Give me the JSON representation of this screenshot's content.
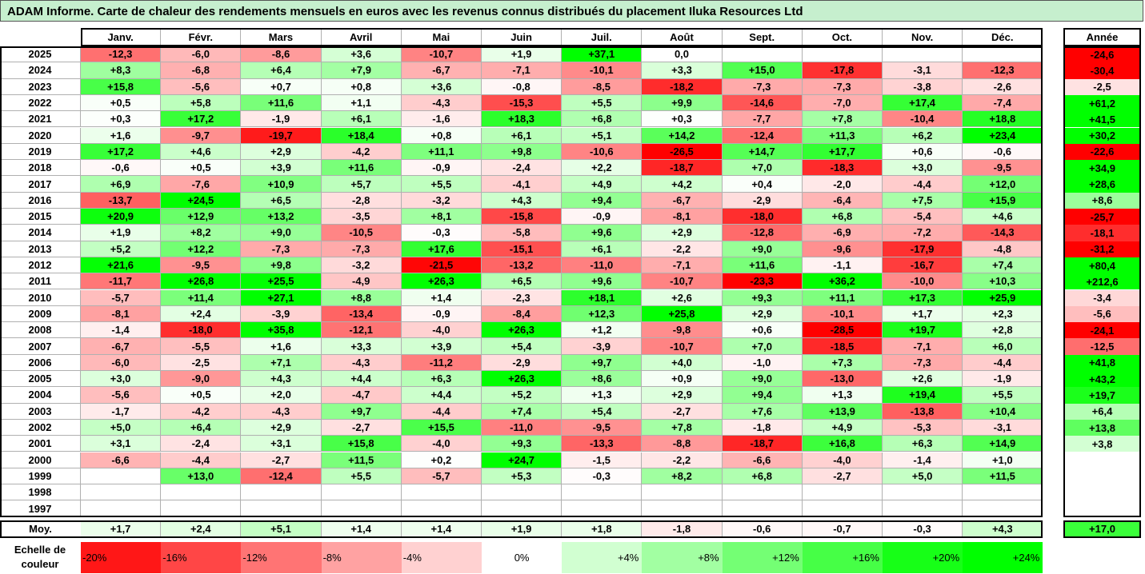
{
  "title": "ADAM Informe. Carte de chaleur des rendements mensuels en euros avec les revenus connus distribués du placement Iluka Resources Ltd",
  "chart_data": {
    "type": "heatmap",
    "months": [
      "Janv.",
      "Févr.",
      "Mars",
      "Avril",
      "Mai",
      "Juin",
      "Juil.",
      "Août",
      "Sept.",
      "Oct.",
      "Nov.",
      "Déc."
    ],
    "annual_header": "Année",
    "years": [
      "2025",
      "2024",
      "2023",
      "2022",
      "2021",
      "2020",
      "2019",
      "2018",
      "2017",
      "2016",
      "2015",
      "2014",
      "2013",
      "2012",
      "2011",
      "2010",
      "2009",
      "2008",
      "2007",
      "2006",
      "2005",
      "2004",
      "2003",
      "2002",
      "2001",
      "2000",
      "1999",
      "1998",
      "1997"
    ],
    "values": [
      [
        -12.3,
        -6.0,
        -8.6,
        3.6,
        -10.7,
        1.9,
        37.1,
        0.0,
        null,
        null,
        null,
        null
      ],
      [
        8.3,
        -6.8,
        6.4,
        7.9,
        -6.7,
        -7.1,
        -10.1,
        3.3,
        15.0,
        -17.8,
        -3.1,
        -12.3
      ],
      [
        15.8,
        -5.6,
        0.7,
        0.8,
        3.6,
        -0.8,
        -8.5,
        -18.2,
        -7.3,
        -7.3,
        -3.8,
        -2.6
      ],
      [
        0.5,
        5.8,
        11.6,
        1.1,
        -4.3,
        -15.3,
        5.5,
        9.9,
        -14.6,
        -7.0,
        17.4,
        -7.4
      ],
      [
        0.3,
        17.2,
        -1.9,
        6.1,
        -1.6,
        18.3,
        6.8,
        0.3,
        -7.7,
        7.8,
        -10.4,
        18.8
      ],
      [
        1.6,
        -9.7,
        -19.7,
        18.4,
        0.8,
        6.1,
        5.1,
        14.2,
        -12.4,
        11.3,
        6.2,
        23.4
      ],
      [
        17.2,
        4.6,
        2.9,
        -4.2,
        11.1,
        9.8,
        -10.6,
        -26.5,
        14.7,
        17.7,
        0.6,
        -0.6
      ],
      [
        -0.6,
        0.5,
        3.9,
        11.6,
        -0.9,
        -2.4,
        2.2,
        -18.7,
        7.0,
        -18.3,
        3.0,
        -9.5
      ],
      [
        6.9,
        -7.6,
        10.9,
        5.7,
        5.5,
        -4.1,
        4.9,
        4.2,
        0.4,
        -2.0,
        -4.4,
        12.0
      ],
      [
        -13.7,
        24.5,
        6.5,
        -2.8,
        -3.2,
        4.3,
        9.4,
        -6.7,
        -2.9,
        -6.4,
        7.5,
        15.9
      ],
      [
        20.9,
        12.9,
        13.2,
        -3.5,
        8.1,
        -15.8,
        -0.9,
        -8.1,
        -18.0,
        6.8,
        -5.4,
        4.6
      ],
      [
        1.9,
        8.2,
        9.0,
        -10.5,
        -0.3,
        -5.8,
        9.6,
        2.9,
        -12.8,
        -6.9,
        -7.2,
        -14.3
      ],
      [
        5.2,
        12.2,
        -7.3,
        -7.3,
        17.6,
        -15.1,
        6.1,
        -2.2,
        9.0,
        -9.6,
        -17.9,
        -4.8
      ],
      [
        21.6,
        -9.5,
        9.8,
        -3.2,
        -21.5,
        -13.2,
        -11.0,
        -7.1,
        11.6,
        -1.1,
        -16.7,
        7.4
      ],
      [
        -11.7,
        26.8,
        25.5,
        -4.9,
        26.3,
        6.5,
        9.6,
        -10.7,
        -23.3,
        36.2,
        -10.0,
        10.3
      ],
      [
        -5.7,
        11.4,
        27.1,
        8.8,
        1.4,
        -2.3,
        18.1,
        2.6,
        9.3,
        11.1,
        17.3,
        25.9
      ],
      [
        -8.1,
        2.4,
        -3.9,
        -13.4,
        -0.9,
        -8.4,
        12.3,
        25.8,
        2.9,
        -10.1,
        1.7,
        2.3
      ],
      [
        -1.4,
        -18.0,
        35.8,
        -12.1,
        -4.0,
        26.3,
        1.2,
        -9.8,
        0.6,
        -28.5,
        19.7,
        2.8
      ],
      [
        -6.7,
        -5.5,
        1.6,
        3.3,
        3.9,
        5.4,
        -3.9,
        -10.7,
        7.0,
        -18.5,
        -7.1,
        6.0
      ],
      [
        -6.0,
        -2.5,
        7.1,
        -4.3,
        -11.2,
        -2.9,
        9.7,
        4.0,
        -1.0,
        7.3,
        -7.3,
        -4.4
      ],
      [
        3.0,
        -9.0,
        4.3,
        4.4,
        6.3,
        26.3,
        8.6,
        0.9,
        9.0,
        -13.0,
        2.6,
        -1.9
      ],
      [
        -5.6,
        0.5,
        2.0,
        -4.7,
        4.4,
        5.2,
        1.3,
        2.9,
        9.4,
        1.3,
        19.4,
        5.5
      ],
      [
        -1.7,
        -4.2,
        -4.3,
        9.7,
        -4.4,
        7.4,
        5.4,
        -2.7,
        7.6,
        13.9,
        -13.8,
        10.4
      ],
      [
        5.0,
        6.4,
        2.9,
        -2.7,
        15.5,
        -11.0,
        -9.5,
        7.8,
        -1.8,
        4.9,
        -5.3,
        -3.1
      ],
      [
        3.1,
        -2.4,
        3.1,
        15.8,
        -4.0,
        9.3,
        -13.3,
        -8.8,
        -18.7,
        16.8,
        6.3,
        14.9
      ],
      [
        -6.6,
        -4.4,
        -2.7,
        11.5,
        0.2,
        24.7,
        -1.5,
        -2.2,
        -6.6,
        -4.0,
        -1.4,
        1.0
      ],
      [
        null,
        13.0,
        -12.4,
        5.5,
        -5.7,
        5.3,
        -0.3,
        8.2,
        6.8,
        -2.7,
        5.0,
        11.5
      ],
      [
        null,
        null,
        null,
        null,
        null,
        null,
        null,
        null,
        null,
        null,
        null,
        null
      ],
      [
        null,
        null,
        null,
        null,
        null,
        null,
        null,
        null,
        null,
        null,
        null,
        null
      ]
    ],
    "annual": [
      -24.6,
      -30.4,
      -2.5,
      61.2,
      41.5,
      30.2,
      -22.6,
      34.9,
      28.6,
      8.6,
      -25.7,
      -18.1,
      -31.2,
      80.4,
      212.6,
      -3.4,
      -5.6,
      -24.1,
      -12.5,
      41.8,
      43.2,
      19.7,
      6.4,
      13.8,
      3.8,
      null,
      null,
      null,
      null
    ],
    "average_label": "Moy.",
    "averages": [
      1.7,
      2.4,
      5.1,
      1.4,
      1.4,
      1.9,
      1.8,
      -1.8,
      -0.6,
      -0.7,
      -0.3,
      4.3
    ],
    "annual_average": 17.0,
    "scale_label": "Echelle de couleur",
    "scale_labels": [
      "-20%",
      "-16%",
      "-12%",
      "-8%",
      "-4%",
      "0%",
      "+4%",
      "+8%",
      "+12%",
      "+16%",
      "+20%",
      "+24%"
    ],
    "scale_values": [
      -20,
      -16,
      -12,
      -8,
      -4,
      0,
      4,
      8,
      12,
      16,
      20,
      24
    ],
    "colors": {
      "negative_max": "#ff0000",
      "positive_max": "#00ff00",
      "neutral": "#ffffff"
    }
  }
}
